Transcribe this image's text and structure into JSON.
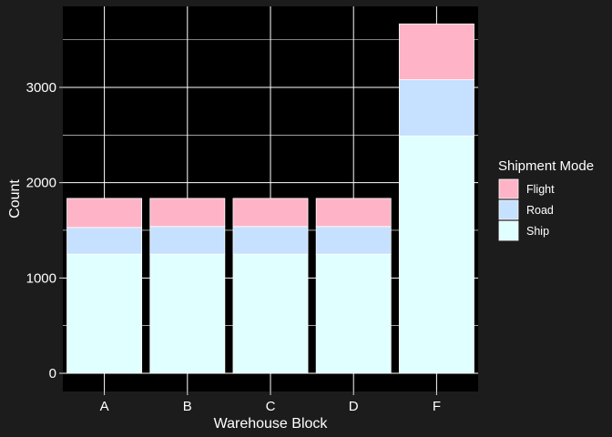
{
  "chart_data": {
    "type": "bar",
    "stacked": true,
    "categories": [
      "A",
      "B",
      "C",
      "D",
      "F"
    ],
    "series": [
      {
        "name": "Ship",
        "values": [
          1250,
          1250,
          1250,
          1250,
          2490
        ],
        "color": "#e0ffff"
      },
      {
        "name": "Road",
        "values": [
          280,
          290,
          290,
          290,
          590
        ],
        "color": "#c6e0ff"
      },
      {
        "name": "Flight",
        "values": [
          305,
          295,
          295,
          295,
          586
        ],
        "color": "#ffb3c7"
      }
    ],
    "title": "",
    "xlabel": "Warehouse Block",
    "ylabel": "Count",
    "ylim": [
      0,
      3850
    ],
    "yticks": [
      0,
      1000,
      2000,
      3000
    ],
    "grid": true,
    "legend": {
      "title": "Shipment Mode",
      "position": "right",
      "entries": [
        "Flight",
        "Road",
        "Ship"
      ]
    },
    "colors": {
      "background": "#1c1c1c",
      "panel": "#000000",
      "grid": "#ffffff",
      "text": "#ffffff",
      "bar_outline": "#ffffff"
    }
  }
}
